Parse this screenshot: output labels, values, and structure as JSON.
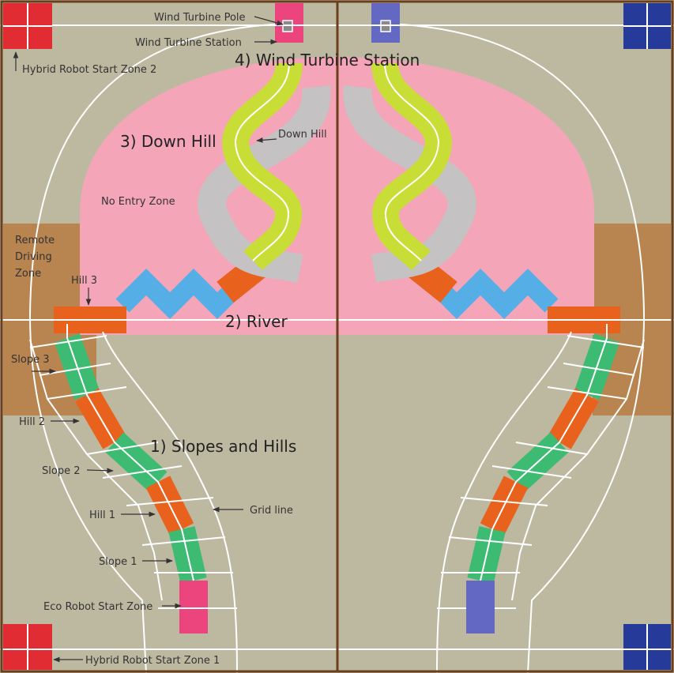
{
  "colors": {
    "field": "#bdb9a1",
    "no_entry": "#f4a6b8",
    "remote_zone": "#b88450",
    "border": "#6b3f1e",
    "red_zone": "#e12c34",
    "blue_zone": "#253a99",
    "slope": "#3dbb73",
    "hill": "#e8621d",
    "river": "#56aee6",
    "downhill_track": "#c8dd35",
    "downhill_shadow": "#c4c2c2",
    "eco_pink": "#ec457d",
    "eco_blue": "#6369c3",
    "grid_line": "#ffffff"
  },
  "labels": {
    "wind_turbine_pole": "Wind Turbine Pole",
    "wind_turbine_station": "Wind Turbine Station",
    "hybrid_start_2": "Hybrid Robot Start Zone 2",
    "hybrid_start_1": "Hybrid Robot Start Zone 1",
    "no_entry_zone": "No Entry Zone",
    "remote_line1": "Remote",
    "remote_line2": "Driving",
    "remote_line3": "Zone",
    "hill_3": "Hill 3",
    "slope_3": "Slope 3",
    "hill_2": "Hill 2",
    "slope_2": "Slope 2",
    "hill_1": "Hill 1",
    "slope_1": "Slope 1",
    "eco_start": "Eco Robot Start Zone",
    "grid_line": "Grid line",
    "down_hill_small": "Down Hill"
  },
  "sections": {
    "s1": "1) Slopes and Hills",
    "s2": "2) River",
    "s3": "3) Down Hill",
    "s4": "4) Wind Turbine Station"
  }
}
